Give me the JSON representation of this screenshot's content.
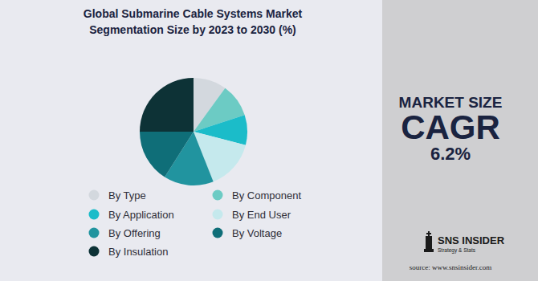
{
  "chart_data": {
    "type": "pie",
    "title": "Global Submarine Cable Systems Market Segmentation Size by 2023 to 2030 (%)",
    "categories": [
      "By Type",
      "By Component",
      "By Application",
      "By End User",
      "By Offering",
      "By Voltage",
      "By Insulation"
    ],
    "values": [
      10,
      10,
      9,
      15,
      15,
      16,
      25
    ],
    "colors": [
      "#d3d8de",
      "#6ccbc4",
      "#1bbcc9",
      "#c5e9ed",
      "#21949f",
      "#0f6e78",
      "#0d3236"
    ],
    "legend": "bottom",
    "annotations": [
      "MARKET SIZE",
      "CAGR",
      "6.2%"
    ],
    "brand": "SNS INSIDER",
    "brand_tagline": "Strategy & Stats",
    "source": "source: www.snsinsider.com"
  }
}
